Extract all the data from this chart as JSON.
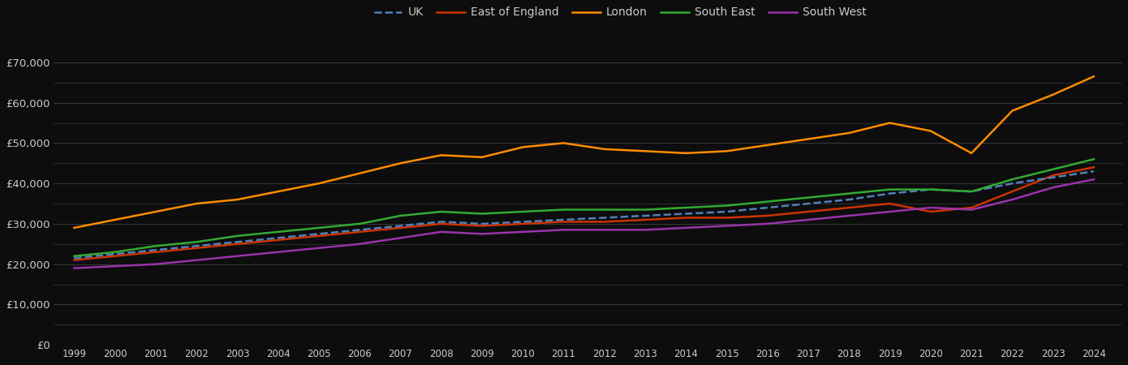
{
  "years": [
    1999,
    2000,
    2001,
    2002,
    2003,
    2004,
    2005,
    2006,
    2007,
    2008,
    2009,
    2010,
    2011,
    2012,
    2013,
    2014,
    2015,
    2016,
    2017,
    2018,
    2019,
    2020,
    2021,
    2022,
    2023,
    2024
  ],
  "UK": [
    21500,
    22500,
    23500,
    24500,
    25500,
    26500,
    27500,
    28500,
    29500,
    30500,
    30000,
    30500,
    31000,
    31500,
    32000,
    32500,
    33000,
    34000,
    35000,
    36000,
    37500,
    38500,
    38000,
    40000,
    41500,
    43000
  ],
  "East_of_England": [
    21000,
    22000,
    23000,
    24000,
    25000,
    26000,
    27000,
    28000,
    29000,
    30000,
    29500,
    30000,
    30500,
    30500,
    31000,
    31500,
    31500,
    32000,
    33000,
    34000,
    35000,
    33000,
    34000,
    38000,
    42000,
    44000
  ],
  "London": [
    29000,
    31000,
    33000,
    35000,
    36000,
    38000,
    40000,
    42500,
    45000,
    47000,
    46500,
    49000,
    50000,
    48500,
    48000,
    47500,
    48000,
    49500,
    51000,
    52500,
    55000,
    53000,
    47500,
    58000,
    62000,
    66500
  ],
  "South_East": [
    22000,
    23000,
    24500,
    25500,
    27000,
    28000,
    29000,
    30000,
    32000,
    33000,
    32500,
    33000,
    33500,
    33500,
    33500,
    34000,
    34500,
    35500,
    36500,
    37500,
    38500,
    38500,
    38000,
    41000,
    43500,
    46000
  ],
  "South_West": [
    19000,
    19500,
    20000,
    21000,
    22000,
    23000,
    24000,
    25000,
    26500,
    28000,
    27500,
    28000,
    28500,
    28500,
    28500,
    29000,
    29500,
    30000,
    31000,
    32000,
    33000,
    34000,
    33500,
    36000,
    39000,
    41000
  ],
  "colors": {
    "UK": "#4f81bd",
    "East_of_England": "#cc3300",
    "London": "#ff8c00",
    "South_East": "#33aa33",
    "South_West": "#9933aa"
  },
  "background_color": "#0d0d0d",
  "grid_color": "#3a3a3a",
  "text_color": "#cccccc",
  "ylim": [
    0,
    75000
  ],
  "yticks_major": [
    0,
    10000,
    20000,
    30000,
    40000,
    50000,
    60000,
    70000
  ],
  "yticks_minor": [
    5000,
    15000,
    25000,
    35000,
    45000,
    55000,
    65000
  ]
}
